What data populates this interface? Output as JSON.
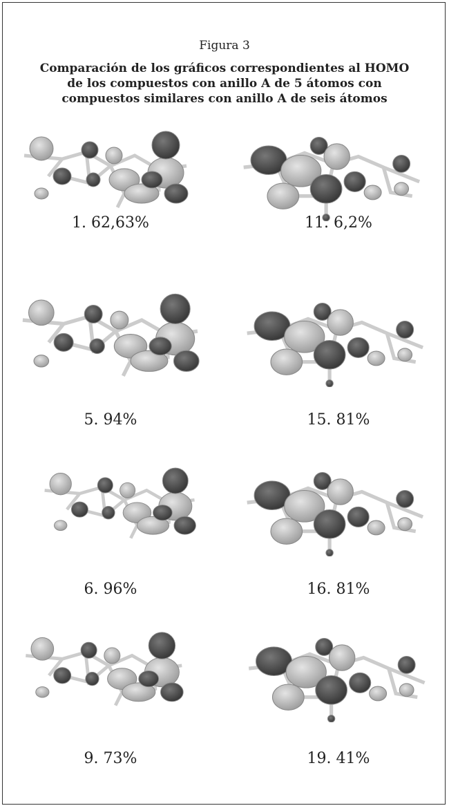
{
  "figure": {
    "label": "Figura 3",
    "title": [
      "Comparación de los gráficos correspondientes al HOMO",
      "de los compuestos con anillo A de 5 átomos con",
      "compuestos similares con anillo A de seis átomos"
    ],
    "panels": [
      {
        "caption": "1. 62,63%"
      },
      {
        "caption": "11. 6,2%"
      },
      {
        "caption": "5. 94%"
      },
      {
        "caption": "15. 81%"
      },
      {
        "caption": "6. 96%"
      },
      {
        "caption": "16. 81%"
      },
      {
        "caption": "9. 73%"
      },
      {
        "caption": "19. 41%"
      }
    ]
  }
}
